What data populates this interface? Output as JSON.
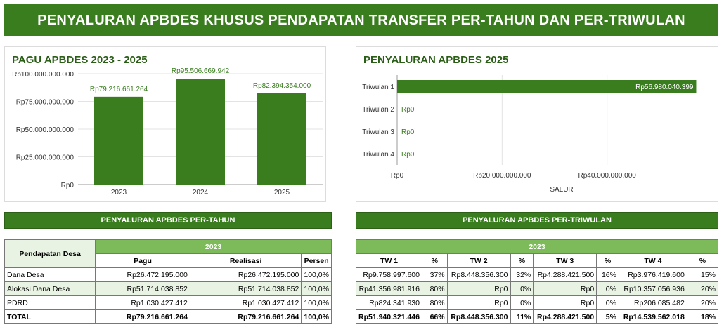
{
  "header": {
    "title": "PENYALURAN APBDES KHUSUS PENDAPATAN TRANSFER PER-TAHUN DAN PER-TRIWULAN"
  },
  "colors": {
    "primary_green": "#3a7d1f",
    "light_green": "#7cba5a",
    "label_green": "#3a7d1f"
  },
  "chart_data": [
    {
      "type": "bar",
      "title": "PAGU APBDES 2023 - 2025",
      "categories": [
        "2023",
        "2024",
        "2025"
      ],
      "values": [
        79216661264,
        95506669942,
        82394354000
      ],
      "data_labels": [
        "Rp79.216.661.264",
        "Rp95.506.669.942",
        "Rp82.394.354.000"
      ],
      "ylim": [
        0,
        100000000000
      ],
      "yticks": [
        0,
        25000000000,
        50000000000,
        75000000000,
        100000000000
      ],
      "ytick_labels": [
        "Rp0",
        "Rp25.000.000.000",
        "Rp50.000.000.000",
        "Rp75.000.000.000",
        "Rp100.000.000.000"
      ],
      "xlabel": "",
      "ylabel": "",
      "grid": true
    },
    {
      "type": "bar",
      "orientation": "horizontal",
      "title": "PENYALURAN APBDES 2025",
      "categories": [
        "Triwulan 1",
        "Triwulan 2",
        "Triwulan 3",
        "Triwulan 4"
      ],
      "values": [
        56980040399,
        0,
        0,
        0
      ],
      "data_labels": [
        "Rp56.980.040.399",
        "Rp0",
        "Rp0",
        "Rp0"
      ],
      "xlim": [
        0,
        60000000000
      ],
      "xticks": [
        0,
        20000000000,
        40000000000
      ],
      "xtick_labels": [
        "Rp0",
        "Rp20.000.000.000",
        "Rp40.000.000.000"
      ],
      "xlabel": "SALUR",
      "ylabel": "",
      "grid": true
    }
  ],
  "annual": {
    "section_title": "PENYALURAN APBDES PER-TAHUN",
    "row_header": "Pendapatan Desa",
    "year": "2023",
    "columns": [
      "Pagu",
      "Realisasi",
      "Persen"
    ],
    "rows": [
      {
        "name": "Dana Desa",
        "pagu": "Rp26.472.195.000",
        "realisasi": "Rp26.472.195.000",
        "persen": "100,0%"
      },
      {
        "name": "Alokasi Dana Desa",
        "pagu": "Rp51.714.038.852",
        "realisasi": "Rp51.714.038.852",
        "persen": "100,0%"
      },
      {
        "name": "PDRD",
        "pagu": "Rp1.030.427.412",
        "realisasi": "Rp1.030.427.412",
        "persen": "100,0%"
      },
      {
        "name": "TOTAL",
        "pagu": "Rp79.216.661.264",
        "realisasi": "Rp79.216.661.264",
        "persen": "100,0%"
      }
    ]
  },
  "quarterly": {
    "section_title": "PENYALURAN APBDES PER-TRIWULAN",
    "year": "2023",
    "columns": [
      "TW 1",
      "%",
      "TW 2",
      "%",
      "TW 3",
      "%",
      "TW 4",
      "%"
    ],
    "rows": [
      [
        "Rp9.758.997.600",
        "37%",
        "Rp8.448.356.300",
        "32%",
        "Rp4.288.421.500",
        "16%",
        "Rp3.976.419.600",
        "15%"
      ],
      [
        "Rp41.356.981.916",
        "80%",
        "Rp0",
        "0%",
        "Rp0",
        "0%",
        "Rp10.357.056.936",
        "20%"
      ],
      [
        "Rp824.341.930",
        "80%",
        "Rp0",
        "0%",
        "Rp0",
        "0%",
        "Rp206.085.482",
        "20%"
      ],
      [
        "Rp51.940.321.446",
        "66%",
        "Rp8.448.356.300",
        "11%",
        "Rp4.288.421.500",
        "5%",
        "Rp14.539.562.018",
        "18%"
      ]
    ]
  }
}
